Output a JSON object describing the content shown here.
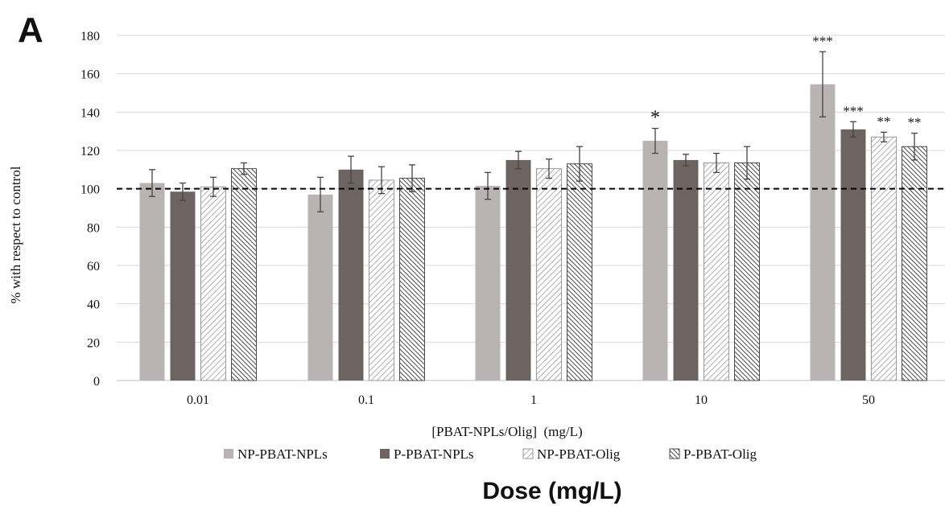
{
  "panel_label": "A",
  "footer_title": "Dose (mg/L)",
  "colors": {
    "np_npls": "#b9b4b3",
    "p_npls": "#6d6462",
    "np_olig_stroke": "#9a9a9a",
    "p_olig_stroke": "#4a4a4a",
    "grid": "#d9d9d9",
    "reference": "#000000",
    "text": "#111111"
  },
  "chart_data": {
    "type": "bar",
    "xlabel": "[PBAT-NPLs/Olig]  (mg/L)",
    "ylabel": "% with respect to control",
    "ylim": [
      0,
      180
    ],
    "yticks": [
      "0",
      "20",
      "40",
      "60",
      "80",
      "100",
      "120",
      "140",
      "160",
      "180"
    ],
    "categories": [
      "0.01",
      "0.1",
      "1",
      "10",
      "50"
    ],
    "reference_line": 100,
    "grid": true,
    "legend_position": "bottom",
    "series": [
      {
        "name": "NP-PBAT-NPLs",
        "fill": "solid-light",
        "values": [
          103,
          97,
          101.5,
          125,
          154.5
        ],
        "errors": [
          7,
          9,
          7,
          6.5,
          17
        ],
        "significance": [
          "",
          "",
          "",
          "*",
          "***"
        ]
      },
      {
        "name": "P-PBAT-NPLs",
        "fill": "solid-dark",
        "values": [
          98.5,
          110,
          115,
          115,
          131
        ],
        "errors": [
          4.5,
          7,
          4.5,
          3,
          4
        ],
        "significance": [
          "",
          "",
          "",
          "",
          "***"
        ]
      },
      {
        "name": "NP-PBAT-Olig",
        "fill": "hatch-light",
        "values": [
          101,
          104.5,
          110.5,
          113.5,
          127
        ],
        "errors": [
          5,
          7,
          5,
          5,
          2.5
        ],
        "significance": [
          "",
          "",
          "",
          "",
          "**"
        ]
      },
      {
        "name": "P-PBAT-Olig",
        "fill": "hatch-dark",
        "values": [
          110.5,
          105.5,
          113,
          113.5,
          122
        ],
        "errors": [
          3,
          7,
          9,
          8.5,
          7
        ],
        "significance": [
          "",
          "",
          "",
          "",
          "**"
        ]
      }
    ]
  }
}
